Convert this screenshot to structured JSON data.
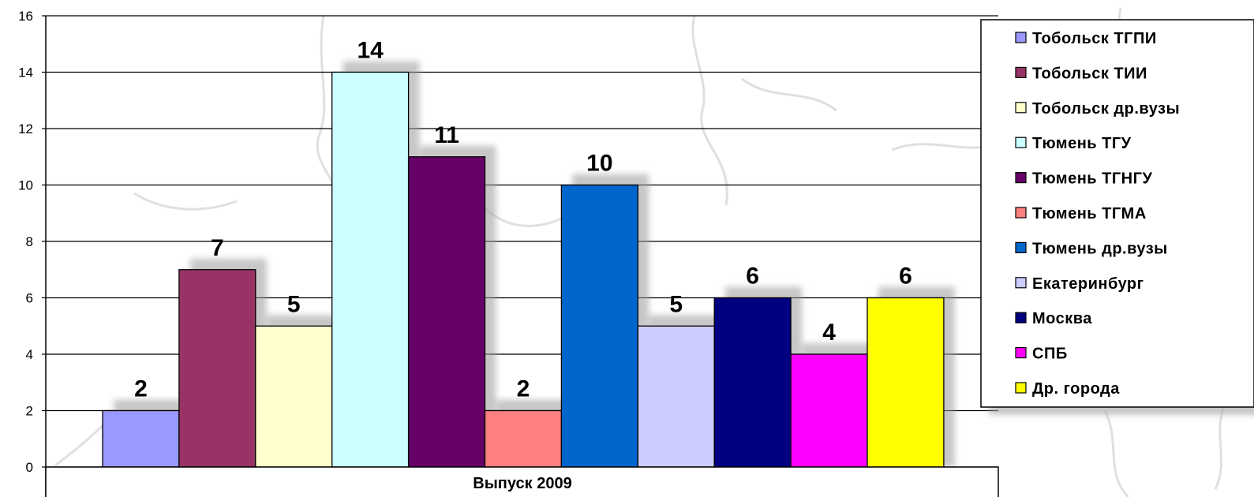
{
  "chart_data": {
    "type": "bar",
    "categories": [
      "Выпуск 2009"
    ],
    "series": [
      {
        "name": "Тобольск ТГПИ",
        "values": [
          2
        ],
        "color": "#9999ff"
      },
      {
        "name": "Тобольск ТИИ",
        "values": [
          7
        ],
        "color": "#993366"
      },
      {
        "name": "Тобольск др.вузы",
        "values": [
          5
        ],
        "color": "#ffffcc"
      },
      {
        "name": "Тюмень ТГУ",
        "values": [
          14
        ],
        "color": "#ccffff"
      },
      {
        "name": "Тюмень ТГНГУ",
        "values": [
          11
        ],
        "color": "#660066"
      },
      {
        "name": "Тюмень ТГМА",
        "values": [
          2
        ],
        "color": "#ff8080"
      },
      {
        "name": "Тюмень др.вузы",
        "values": [
          10
        ],
        "color": "#0066cc"
      },
      {
        "name": "Екатеринбург",
        "values": [
          5
        ],
        "color": "#ccccff"
      },
      {
        "name": "Москва",
        "values": [
          6
        ],
        "color": "#000080"
      },
      {
        "name": "СПБ",
        "values": [
          4
        ],
        "color": "#ff00ff"
      },
      {
        "name": "Др. города",
        "values": [
          6
        ],
        "color": "#ffff00"
      }
    ],
    "data_labels": [
      "2",
      "7",
      "5",
      "14",
      "11",
      "2",
      "10",
      "5",
      "6",
      "4",
      "6"
    ],
    "yticks": [
      "0",
      "2",
      "4",
      "6",
      "8",
      "10",
      "12",
      "14",
      "16"
    ],
    "ylim": [
      0,
      16
    ],
    "grid": true,
    "legend_position": "right",
    "title": "",
    "xlabel": "",
    "ylabel": ""
  }
}
